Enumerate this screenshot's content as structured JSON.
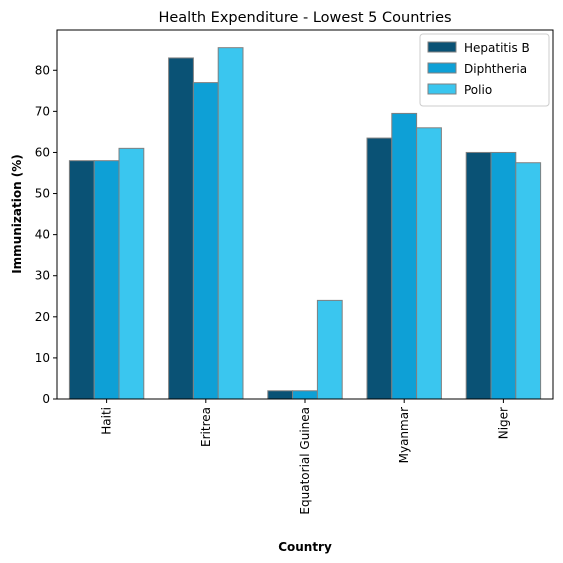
{
  "chart_data": {
    "type": "bar",
    "title": "Health Expenditure - Lowest 5 Countries",
    "xlabel": "Country",
    "ylabel": "Immunization (%)",
    "categories": [
      "Haiti",
      "Eritrea",
      "Equatorial Guinea",
      "Myanmar",
      "Niger"
    ],
    "series": [
      {
        "name": "Hepatitis B",
        "color": "#0a5275",
        "values": [
          58,
          83,
          2,
          63.5,
          60
        ]
      },
      {
        "name": "Diphtheria",
        "color": "#0ea0d6",
        "values": [
          58,
          77,
          2,
          69.5,
          60
        ]
      },
      {
        "name": "Polio",
        "color": "#3ac6ef",
        "values": [
          61,
          85.5,
          24,
          66,
          57.5
        ]
      }
    ],
    "ylim": [
      0,
      89.8
    ],
    "yticks": [
      0,
      10,
      20,
      30,
      40,
      50,
      60,
      70,
      80
    ],
    "grid": false,
    "legend_position": "top-right"
  }
}
